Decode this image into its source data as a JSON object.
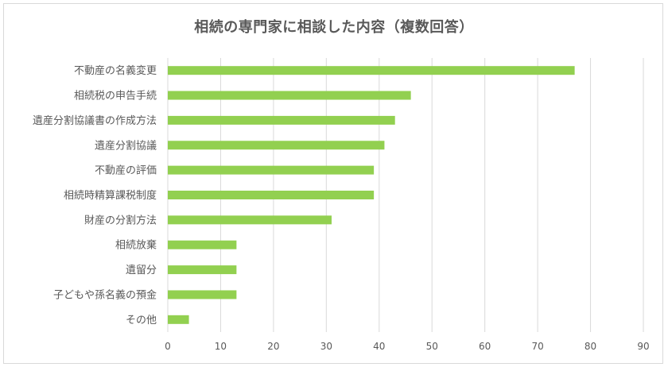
{
  "chart_data": {
    "type": "bar",
    "orientation": "horizontal",
    "title": "相続の専門家に相談した内容（複数回答）",
    "categories": [
      "不動産の名義変更",
      "相続税の申告手続",
      "遺産分割協議書の作成方法",
      "遺産分割協議",
      "不動産の評価",
      "相続時精算課税制度",
      "財産の分割方法",
      "相続放棄",
      "遺留分",
      "子どもや孫名義の預金",
      "その他"
    ],
    "values": [
      77,
      46,
      43,
      41,
      39,
      39,
      31,
      13,
      13,
      13,
      4
    ],
    "xlim": [
      0,
      90
    ],
    "xticks": [
      "0",
      "10",
      "20",
      "30",
      "40",
      "50",
      "60",
      "70",
      "80",
      "90"
    ],
    "grid": "vertical",
    "bar_color": "#92d050",
    "grid_color": "#d9d9d9",
    "text_color": "#595959"
  }
}
